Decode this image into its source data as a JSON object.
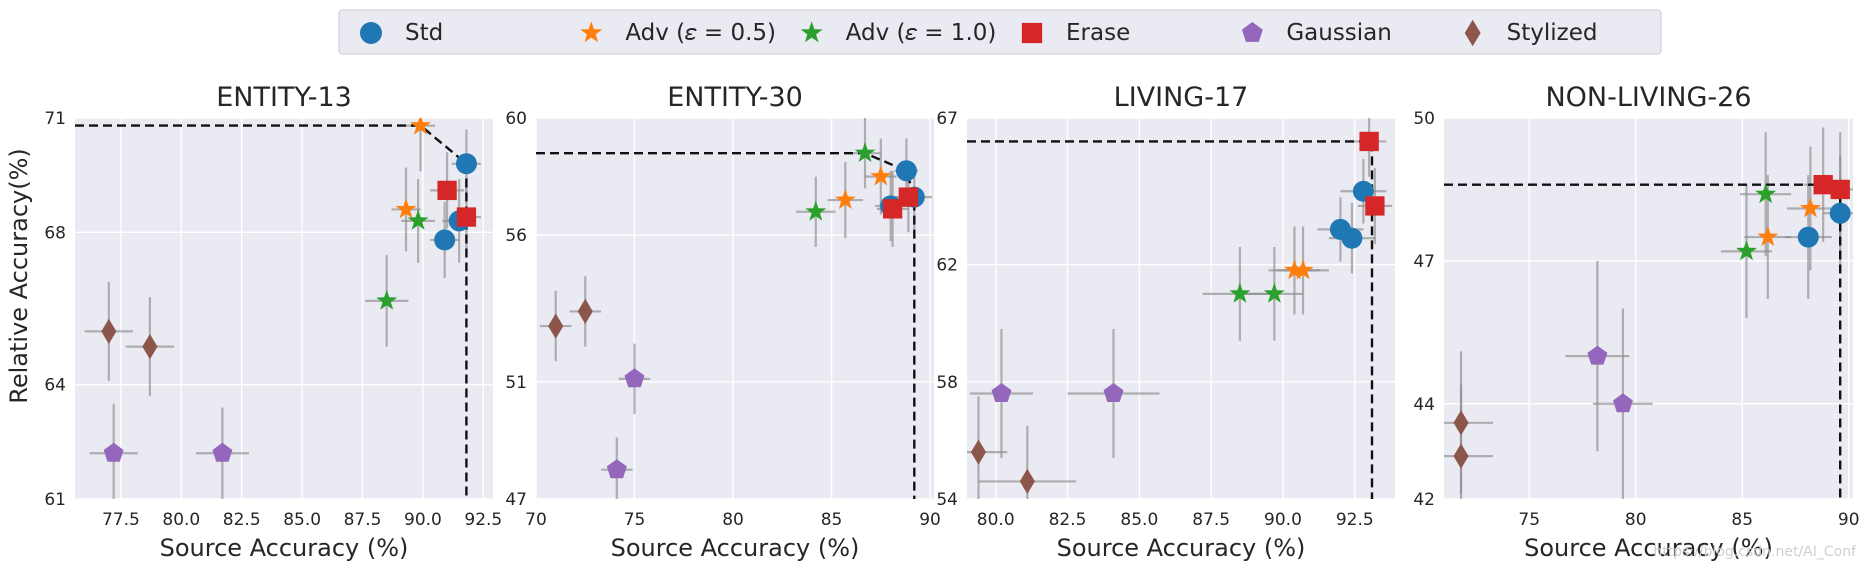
{
  "chart_data": {
    "type": "scatter",
    "ylabel": "Relative Accuracy(%)",
    "xlabel": "Source Accuracy (%)",
    "legend": {
      "position": "top-center",
      "entries": [
        {
          "key": "std",
          "label": "Std",
          "marker": "circle",
          "color": "#1f77b4"
        },
        {
          "key": "adv05",
          "label": "Adv (𝜀 = 0.5)",
          "marker": "star",
          "color": "#ff7f0e"
        },
        {
          "key": "adv10",
          "label": "Adv (𝜀 = 1.0)",
          "marker": "star",
          "color": "#2ca02c"
        },
        {
          "key": "erase",
          "label": "Erase",
          "marker": "square",
          "color": "#d62728"
        },
        {
          "key": "gauss",
          "label": "Gaussian",
          "marker": "pentagon",
          "color": "#9467bd"
        },
        {
          "key": "styl",
          "label": "Stylized",
          "marker": "diamond",
          "color": "#8c564b"
        }
      ]
    },
    "panels": [
      {
        "title": "ENTITY-13",
        "xlim": [
          75.6,
          92.9
        ],
        "ylim": [
          61,
          71
        ],
        "xticks": [
          "77.5",
          "80.0",
          "82.5",
          "85.0",
          "87.5",
          "90.0",
          "92.5"
        ],
        "xtick_values": [
          77.5,
          80,
          82.5,
          85,
          87.5,
          90,
          92.5
        ],
        "yticks": [
          "61",
          "64",
          "68",
          "71"
        ],
        "ytick_values": [
          61,
          64,
          68,
          71
        ],
        "frontier": [
          [
            75.6,
            70.8
          ],
          [
            89.9,
            70.8
          ],
          [
            91.8,
            69.8
          ],
          [
            91.8,
            61
          ]
        ],
        "points": [
          {
            "series": "std",
            "x": 91.8,
            "y": 69.8,
            "xerr": 0.6,
            "yerr": 0.9
          },
          {
            "series": "std",
            "x": 91.5,
            "y": 68.3,
            "xerr": 0.7,
            "yerr": 1.1
          },
          {
            "series": "std",
            "x": 90.9,
            "y": 67.8,
            "xerr": 0.6,
            "yerr": 1.0
          },
          {
            "series": "adv05",
            "x": 89.9,
            "y": 70.8,
            "xerr": 0.6,
            "yerr": 1.2
          },
          {
            "series": "adv05",
            "x": 89.3,
            "y": 68.6,
            "xerr": 0.6,
            "yerr": 1.1
          },
          {
            "series": "adv10",
            "x": 89.8,
            "y": 68.3,
            "xerr": 0.7,
            "yerr": 1.1
          },
          {
            "series": "adv10",
            "x": 88.5,
            "y": 66.2,
            "xerr": 0.9,
            "yerr": 1.2
          },
          {
            "series": "erase",
            "x": 91.0,
            "y": 69.1,
            "xerr": 0.7,
            "yerr": 1.0
          },
          {
            "series": "erase",
            "x": 91.8,
            "y": 68.4,
            "xerr": 0.6,
            "yerr": 1.0
          },
          {
            "series": "gauss",
            "x": 77.2,
            "y": 62.2,
            "xerr": 1.0,
            "yerr": 1.3
          },
          {
            "series": "gauss",
            "x": 81.7,
            "y": 62.2,
            "xerr": 1.1,
            "yerr": 1.2
          },
          {
            "series": "styl",
            "x": 77.0,
            "y": 65.4,
            "xerr": 1.0,
            "yerr": 1.3
          },
          {
            "series": "styl",
            "x": 78.7,
            "y": 65.0,
            "xerr": 1.0,
            "yerr": 1.3
          }
        ]
      },
      {
        "title": "ENTITY-30",
        "xlim": [
          70,
          90.2
        ],
        "ylim": [
          47,
          60
        ],
        "xticks": [
          "70",
          "75",
          "80",
          "85",
          "90"
        ],
        "xtick_values": [
          70,
          75,
          80,
          85,
          90
        ],
        "yticks": [
          "47",
          "51",
          "56",
          "60"
        ],
        "ytick_values": [
          47,
          51,
          56,
          60
        ],
        "frontier": [
          [
            70,
            58.8
          ],
          [
            86.7,
            58.8
          ],
          [
            88.8,
            58.2
          ],
          [
            89.2,
            57.3
          ],
          [
            89.2,
            47
          ]
        ],
        "points": [
          {
            "series": "std",
            "x": 88.8,
            "y": 58.2,
            "xerr": 0.6,
            "yerr": 1.1
          },
          {
            "series": "std",
            "x": 88.0,
            "y": 57.0,
            "xerr": 0.8,
            "yerr": 1.2
          },
          {
            "series": "std",
            "x": 89.2,
            "y": 57.3,
            "xerr": 0.9,
            "yerr": 1.1
          },
          {
            "series": "adv05",
            "x": 87.5,
            "y": 58.0,
            "xerr": 0.8,
            "yerr": 1.3
          },
          {
            "series": "adv05",
            "x": 85.7,
            "y": 57.2,
            "xerr": 0.9,
            "yerr": 1.3
          },
          {
            "series": "adv10",
            "x": 86.7,
            "y": 58.8,
            "xerr": 0.8,
            "yerr": 1.2
          },
          {
            "series": "adv10",
            "x": 84.2,
            "y": 56.8,
            "xerr": 1.0,
            "yerr": 1.2
          },
          {
            "series": "erase",
            "x": 88.1,
            "y": 56.9,
            "xerr": 0.8,
            "yerr": 1.3
          },
          {
            "series": "erase",
            "x": 88.9,
            "y": 57.3,
            "xerr": 0.7,
            "yerr": 1.2
          },
          {
            "series": "gauss",
            "x": 75.0,
            "y": 51.1,
            "xerr": 0.8,
            "yerr": 1.2
          },
          {
            "series": "gauss",
            "x": 74.1,
            "y": 48.0,
            "xerr": 0.8,
            "yerr": 1.1
          },
          {
            "series": "styl",
            "x": 71.0,
            "y": 52.9,
            "xerr": 0.8,
            "yerr": 1.2
          },
          {
            "series": "styl",
            "x": 72.5,
            "y": 53.4,
            "xerr": 0.8,
            "yerr": 1.2
          }
        ]
      },
      {
        "title": "LIVING-17",
        "xlim": [
          79,
          93.9
        ],
        "ylim": [
          54,
          67
        ],
        "xticks": [
          "80.0",
          "82.5",
          "85.0",
          "87.5",
          "90.0",
          "92.5"
        ],
        "xtick_values": [
          80,
          82.5,
          85,
          87.5,
          90,
          92.5
        ],
        "yticks": [
          "54",
          "58",
          "62",
          "67"
        ],
        "ytick_values": [
          54,
          58,
          62,
          67
        ],
        "frontier": [
          [
            79,
            66.2
          ],
          [
            93.1,
            66.2
          ],
          [
            93.1,
            54
          ]
        ],
        "points": [
          {
            "series": "std",
            "x": 92.8,
            "y": 64.5,
            "xerr": 0.8,
            "yerr": 1.1
          },
          {
            "series": "std",
            "x": 92.0,
            "y": 63.2,
            "xerr": 0.8,
            "yerr": 1.1
          },
          {
            "series": "std",
            "x": 92.4,
            "y": 62.9,
            "xerr": 0.8,
            "yerr": 1.2
          },
          {
            "series": "adv05",
            "x": 90.4,
            "y": 61.8,
            "xerr": 0.9,
            "yerr": 1.5
          },
          {
            "series": "adv05",
            "x": 90.7,
            "y": 61.8,
            "xerr": 0.9,
            "yerr": 1.5
          },
          {
            "series": "adv10",
            "x": 88.5,
            "y": 61.0,
            "xerr": 1.3,
            "yerr": 1.6
          },
          {
            "series": "adv10",
            "x": 89.7,
            "y": 61.0,
            "xerr": 1.0,
            "yerr": 1.6
          },
          {
            "series": "erase",
            "x": 93.0,
            "y": 66.2,
            "xerr": 0.6,
            "yerr": 1.2
          },
          {
            "series": "erase",
            "x": 93.2,
            "y": 64.0,
            "xerr": 0.6,
            "yerr": 1.3
          },
          {
            "series": "gauss",
            "x": 80.2,
            "y": 57.6,
            "xerr": 1.1,
            "yerr": 2.2
          },
          {
            "series": "gauss",
            "x": 84.1,
            "y": 57.6,
            "xerr": 1.6,
            "yerr": 2.2
          },
          {
            "series": "styl",
            "x": 79.4,
            "y": 55.6,
            "xerr": 1.0,
            "yerr": 1.9
          },
          {
            "series": "styl",
            "x": 81.1,
            "y": 54.6,
            "xerr": 1.7,
            "yerr": 1.9
          }
        ]
      },
      {
        "title": "NON-LIVING-26",
        "xlim": [
          71,
          90.2
        ],
        "ylim": [
          42,
          50
        ],
        "xticks": [
          "75",
          "80",
          "85",
          "90"
        ],
        "xtick_values": [
          75,
          80,
          85,
          90
        ],
        "yticks": [
          "42",
          "44",
          "47",
          "50"
        ],
        "ytick_values": [
          42,
          44,
          47,
          50
        ],
        "frontier": [
          [
            71,
            48.6
          ],
          [
            89.6,
            48.6
          ],
          [
            89.6,
            42
          ]
        ],
        "points": [
          {
            "series": "std",
            "x": 89.6,
            "y": 48.0,
            "xerr": 0.8,
            "yerr": 1.2
          },
          {
            "series": "std",
            "x": 88.1,
            "y": 47.5,
            "xerr": 1.1,
            "yerr": 1.3
          },
          {
            "series": "adv05",
            "x": 88.2,
            "y": 48.1,
            "xerr": 1.1,
            "yerr": 1.3
          },
          {
            "series": "adv05",
            "x": 86.2,
            "y": 47.5,
            "xerr": 1.1,
            "yerr": 1.3
          },
          {
            "series": "adv10",
            "x": 86.1,
            "y": 48.4,
            "xerr": 1.2,
            "yerr": 1.3
          },
          {
            "series": "adv10",
            "x": 85.2,
            "y": 47.2,
            "xerr": 1.2,
            "yerr": 1.4
          },
          {
            "series": "erase",
            "x": 88.8,
            "y": 48.6,
            "xerr": 0.9,
            "yerr": 1.2
          },
          {
            "series": "erase",
            "x": 89.6,
            "y": 48.5,
            "xerr": 0.8,
            "yerr": 1.2
          },
          {
            "series": "gauss",
            "x": 78.2,
            "y": 45.0,
            "xerr": 1.5,
            "yerr": 2.0
          },
          {
            "series": "gauss",
            "x": 79.4,
            "y": 44.0,
            "xerr": 1.4,
            "yerr": 2.0
          },
          {
            "series": "styl",
            "x": 71.8,
            "y": 43.6,
            "xerr": 1.5,
            "yerr": 1.5
          },
          {
            "series": "styl",
            "x": 71.8,
            "y": 42.9,
            "xerr": 1.5,
            "yerr": 1.5
          }
        ]
      }
    ]
  },
  "watermark": "https://blog.csdn.net/AI_Conf"
}
